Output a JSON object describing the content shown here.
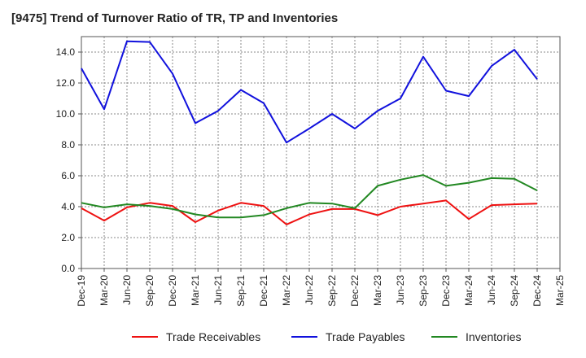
{
  "chart_data": {
    "type": "line",
    "title": "[9475]  Trend of Turnover Ratio of TR, TP and Inventories",
    "xlabel": "",
    "ylabel": "",
    "ylim": [
      0,
      15
    ],
    "yticks": [
      "0.0",
      "2.0",
      "4.0",
      "6.0",
      "8.0",
      "10.0",
      "12.0",
      "14.0"
    ],
    "ytick_values": [
      0,
      2,
      4,
      6,
      8,
      10,
      12,
      14
    ],
    "x": [
      "Dec-19",
      "Mar-20",
      "Jun-20",
      "Sep-20",
      "Dec-20",
      "Mar-21",
      "Jun-21",
      "Sep-21",
      "Dec-21",
      "Mar-22",
      "Jun-22",
      "Sep-22",
      "Dec-22",
      "Mar-23",
      "Jun-23",
      "Sep-23",
      "Dec-23",
      "Mar-24",
      "Jun-24",
      "Sep-24",
      "Dec-24",
      "Mar-25"
    ],
    "grid": true,
    "legend_position": "bottom",
    "series": [
      {
        "name": "Trade Receivables",
        "color": "#ee1111",
        "values": [
          3.9,
          3.1,
          3.95,
          4.25,
          4.05,
          3.0,
          3.75,
          4.25,
          4.05,
          2.85,
          3.5,
          3.85,
          3.85,
          3.45,
          4.0,
          4.2,
          4.4,
          3.2,
          4.1,
          4.15,
          4.2,
          null
        ]
      },
      {
        "name": "Trade Payables",
        "color": "#1111dd",
        "values": [
          12.95,
          10.3,
          14.7,
          14.65,
          12.6,
          9.4,
          10.2,
          11.55,
          10.7,
          8.15,
          9.05,
          10.0,
          9.05,
          10.2,
          11.0,
          13.7,
          11.5,
          11.15,
          13.1,
          14.15,
          12.25,
          null
        ]
      },
      {
        "name": "Inventories",
        "color": "#228822",
        "values": [
          4.25,
          3.95,
          4.15,
          4.05,
          3.85,
          3.5,
          3.3,
          3.3,
          3.45,
          3.9,
          4.25,
          4.2,
          3.9,
          5.35,
          5.75,
          6.05,
          5.35,
          5.55,
          5.85,
          5.8,
          5.05,
          null
        ]
      }
    ]
  }
}
